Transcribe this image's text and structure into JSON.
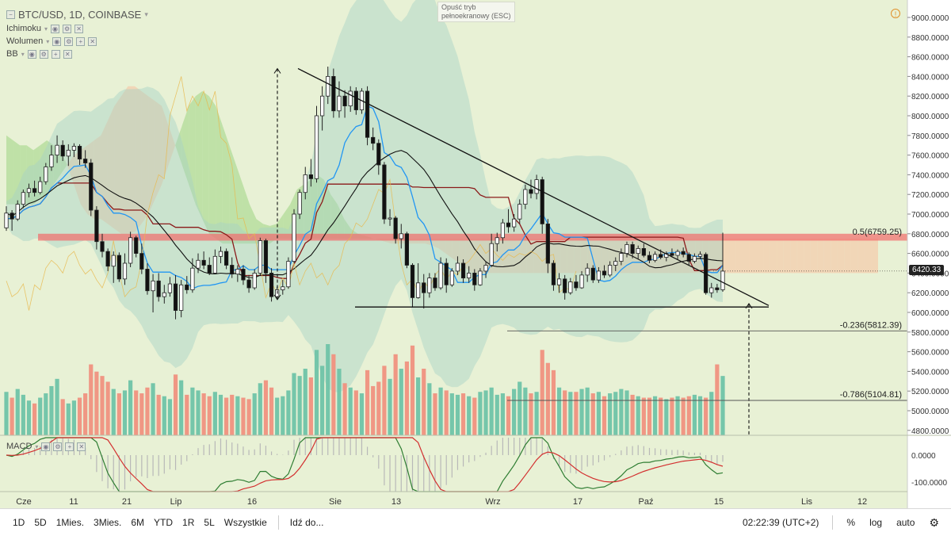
{
  "header": {
    "symbol_title": "BTC/USD, 1D, COINBASE",
    "fullscreen_tooltip": "Opuść tryb\npełnoekranowy (ESC)",
    "indicators": [
      {
        "name": "Ichimoku",
        "btn_symbols": [
          "◉",
          "⚙",
          "✕"
        ]
      },
      {
        "name": "Wolumen",
        "btn_symbols": [
          "◉",
          "⚙",
          "+",
          "✕"
        ]
      },
      {
        "name": "BB",
        "btn_symbols": [
          "◉",
          "⚙",
          "+",
          "✕"
        ]
      }
    ],
    "macd_label": "MACD"
  },
  "colors": {
    "background": "#e8f1d5",
    "bull": "#2a2a2a",
    "up_volume": "#6fc3a8",
    "down_volume": "#f0917f",
    "tenkan": "#2196f3",
    "kijun": "#8b1a1a",
    "bb_mid": "#111111",
    "bb_band": "#a6d2c5",
    "kumo_green": "#a9d88f",
    "kumo_red": "#f6c7a7",
    "resistance_zone": "#f26b6b",
    "macd_line": "#2e7d32",
    "signal_line": "#d32f2f"
  },
  "price_axis": {
    "ticks": [
      4800,
      5000,
      5200,
      5400,
      5600,
      5800,
      6000,
      6200,
      6400,
      6600,
      6800,
      7000,
      7200,
      7400,
      7600,
      7800,
      8000,
      8200,
      8400,
      8600,
      8800,
      9000
    ],
    "current_price": "6420.33",
    "macd_ticks": [
      "0.0000",
      "-100.0000"
    ]
  },
  "time_axis": {
    "labels": [
      "Cze",
      "11",
      "21",
      "Lip",
      "16",
      "Sie",
      "13",
      "Wrz",
      "17",
      "Paź",
      "15",
      "Lis",
      "12"
    ]
  },
  "bottom_bar": {
    "timeframes": [
      "1D",
      "5D",
      "1Mies.",
      "3Mies.",
      "6M",
      "YTD",
      "1R",
      "5L",
      "Wszystkie"
    ],
    "goto": "Idź do...",
    "clock": "02:22:39 (UTC+2)",
    "percent": "%",
    "log": "log",
    "auto": "auto"
  },
  "chart_data": {
    "type": "candlestick",
    "title": "BTC/USD, 1D, COINBASE",
    "ylim": [
      4750,
      9100
    ],
    "annotations": {
      "fib_05": {
        "label": "0.5(6759.25)",
        "value": 6759.25
      },
      "fib_0236": {
        "label": "-0.236(5812.39)",
        "value": 5812.39
      },
      "fib_0786": {
        "label": "-0.786(5104.81)",
        "value": 5104.81
      },
      "resistance_zone": [
        6730,
        6800
      ],
      "support_line": 6055,
      "descending_trendline": [
        [
          0,
          8480
        ],
        [
          1,
          6070
        ]
      ],
      "measured_move_top": 8480,
      "measured_move_bottom": 6130
    },
    "anchors": {
      "candles": [
        [
          6860,
          7080,
          6830,
          7010
        ],
        [
          7010,
          7040,
          6830,
          6950
        ],
        [
          6950,
          7140,
          6930,
          7100
        ],
        [
          7100,
          7250,
          7060,
          7220
        ],
        [
          7220,
          7310,
          7170,
          7260
        ],
        [
          7260,
          7340,
          7180,
          7220
        ],
        [
          7220,
          7380,
          7200,
          7330
        ],
        [
          7330,
          7520,
          7300,
          7480
        ],
        [
          7480,
          7700,
          7440,
          7600
        ],
        [
          7600,
          7800,
          7520,
          7700
        ],
        [
          7700,
          7750,
          7540,
          7590
        ],
        [
          7590,
          7710,
          7490,
          7650
        ],
        [
          7650,
          7720,
          7580,
          7690
        ],
        [
          7690,
          7710,
          7500,
          7560
        ],
        [
          7560,
          7650,
          7470,
          7520
        ],
        [
          7520,
          7560,
          6980,
          7040
        ],
        [
          7040,
          7080,
          6640,
          6720
        ],
        [
          6720,
          6800,
          6560,
          6620
        ],
        [
          6620,
          6650,
          6420,
          6470
        ],
        [
          6470,
          6620,
          6300,
          6580
        ],
        [
          6580,
          6610,
          6310,
          6340
        ],
        [
          6340,
          6600,
          6280,
          6500
        ],
        [
          6500,
          6820,
          6460,
          6760
        ],
        [
          6760,
          6780,
          6560,
          6600
        ],
        [
          6600,
          6700,
          6390,
          6440
        ],
        [
          6440,
          6500,
          6180,
          6220
        ],
        [
          6220,
          6390,
          6000,
          6320
        ],
        [
          6320,
          6400,
          6110,
          6160
        ],
        [
          6160,
          6280,
          6090,
          6200
        ],
        [
          6200,
          6360,
          6160,
          6290
        ],
        [
          6290,
          6380,
          5930,
          6020
        ],
        [
          6020,
          6330,
          5950,
          6280
        ],
        [
          6280,
          6370,
          6190,
          6230
        ],
        [
          6230,
          6550,
          6200,
          6450
        ],
        [
          6450,
          6600,
          6400,
          6530
        ],
        [
          6530,
          6620,
          6440,
          6480
        ],
        [
          6480,
          6560,
          6380,
          6400
        ],
        [
          6400,
          6640,
          6390,
          6570
        ],
        [
          6570,
          6670,
          6500,
          6620
        ],
        [
          6620,
          6650,
          6440,
          6480
        ],
        [
          6480,
          6560,
          6350,
          6390
        ],
        [
          6390,
          6480,
          6310,
          6440
        ],
        [
          6440,
          6480,
          6280,
          6330
        ],
        [
          6330,
          6380,
          6200,
          6250
        ],
        [
          6250,
          6440,
          6230,
          6400
        ],
        [
          6400,
          6760,
          6380,
          6730
        ],
        [
          6730,
          6750,
          6300,
          6400
        ],
        [
          6400,
          6450,
          6110,
          6160
        ],
        [
          6160,
          6260,
          6130,
          6230
        ],
        [
          6230,
          6330,
          6180,
          6260
        ],
        [
          6260,
          6560,
          6240,
          6520
        ],
        [
          6520,
          7050,
          6500,
          7000
        ],
        [
          7000,
          7250,
          6950,
          7220
        ],
        [
          7220,
          7480,
          7150,
          7400
        ],
        [
          7400,
          7560,
          7280,
          7360
        ],
        [
          7360,
          8100,
          7320,
          8000
        ],
        [
          8000,
          8300,
          7850,
          8200
        ],
        [
          8200,
          8500,
          8120,
          8400
        ],
        [
          8400,
          8480,
          7980,
          8050
        ],
        [
          8050,
          8350,
          7980,
          8200
        ],
        [
          8200,
          8260,
          7980,
          8100
        ],
        [
          8100,
          8300,
          8040,
          8250
        ],
        [
          8250,
          8290,
          8010,
          8060
        ],
        [
          8060,
          8280,
          8020,
          8250
        ],
        [
          8250,
          8300,
          7700,
          7780
        ],
        [
          7780,
          7880,
          7650,
          7720
        ],
        [
          7720,
          7760,
          7400,
          7500
        ],
        [
          7500,
          7530,
          6900,
          6950
        ],
        [
          6950,
          7050,
          6880,
          6960
        ],
        [
          6960,
          6980,
          6700,
          6750
        ],
        [
          6750,
          6900,
          6650,
          6800
        ],
        [
          6800,
          6820,
          6450,
          6480
        ],
        [
          6480,
          6500,
          6050,
          6150
        ],
        [
          6150,
          6500,
          6140,
          6300
        ],
        [
          6300,
          6390,
          6040,
          6200
        ],
        [
          6200,
          6400,
          6150,
          6350
        ],
        [
          6350,
          6400,
          6220,
          6250
        ],
        [
          6250,
          6560,
          6230,
          6500
        ],
        [
          6500,
          6550,
          6200,
          6280
        ],
        [
          6280,
          6450,
          6260,
          6420
        ],
        [
          6420,
          6570,
          6380,
          6500
        ],
        [
          6500,
          6540,
          6300,
          6350
        ],
        [
          6350,
          6470,
          6300,
          6400
        ],
        [
          6400,
          6440,
          6220,
          6280
        ],
        [
          6280,
          6450,
          6270,
          6420
        ],
        [
          6420,
          6520,
          6350,
          6480
        ],
        [
          6480,
          6800,
          6460,
          6700
        ],
        [
          6700,
          6810,
          6620,
          6760
        ],
        [
          6760,
          6950,
          6700,
          6910
        ],
        [
          6910,
          7050,
          6810,
          6870
        ],
        [
          6870,
          7000,
          6820,
          6950
        ],
        [
          6950,
          7150,
          6900,
          7100
        ],
        [
          7100,
          7300,
          7050,
          7250
        ],
        [
          7250,
          7350,
          7160,
          7210
        ],
        [
          7210,
          7400,
          7150,
          7350
        ],
        [
          7350,
          7380,
          6800,
          6900
        ],
        [
          6900,
          6950,
          6400,
          6500
        ],
        [
          6500,
          6530,
          6220,
          6280
        ],
        [
          6280,
          6400,
          6200,
          6340
        ],
        [
          6340,
          6380,
          6130,
          6200
        ],
        [
          6200,
          6350,
          6180,
          6310
        ],
        [
          6310,
          6380,
          6220,
          6250
        ],
        [
          6250,
          6420,
          6240,
          6380
        ],
        [
          6380,
          6500,
          6310,
          6450
        ],
        [
          6450,
          6480,
          6300,
          6330
        ],
        [
          6330,
          6460,
          6300,
          6420
        ],
        [
          6420,
          6480,
          6350,
          6380
        ],
        [
          6380,
          6520,
          6360,
          6480
        ],
        [
          6480,
          6560,
          6420,
          6520
        ],
        [
          6520,
          6650,
          6480,
          6600
        ],
        [
          6600,
          6720,
          6560,
          6690
        ],
        [
          6690,
          6720,
          6550,
          6600
        ],
        [
          6600,
          6680,
          6540,
          6650
        ],
        [
          6650,
          6700,
          6560,
          6580
        ],
        [
          6580,
          6620,
          6500,
          6530
        ],
        [
          6530,
          6620,
          6510,
          6590
        ],
        [
          6590,
          6640,
          6540,
          6560
        ],
        [
          6560,
          6620,
          6520,
          6600
        ],
        [
          6600,
          6650,
          6560,
          6580
        ],
        [
          6580,
          6640,
          6540,
          6620
        ],
        [
          6620,
          6660,
          6560,
          6590
        ],
        [
          6590,
          6610,
          6480,
          6520
        ],
        [
          6520,
          6600,
          6500,
          6570
        ],
        [
          6570,
          6620,
          6540,
          6590
        ],
        [
          6590,
          6610,
          6180,
          6200
        ],
        [
          6200,
          6300,
          6150,
          6250
        ],
        [
          6250,
          6290,
          6200,
          6230
        ],
        [
          6230,
          6810,
          6210,
          6420
        ]
      ],
      "volume": [
        3000,
        2600,
        3200,
        2800,
        2400,
        2200,
        2600,
        2900,
        3400,
        3900,
        2500,
        2200,
        2400,
        2600,
        2900,
        4900,
        4400,
        4100,
        3700,
        3200,
        2900,
        3100,
        3800,
        3100,
        2900,
        3300,
        3600,
        2800,
        2700,
        2500,
        4200,
        3800,
        2800,
        3300,
        3100,
        2900,
        2700,
        3000,
        2800,
        2600,
        2800,
        2700,
        2600,
        2500,
        2900,
        3600,
        3800,
        3300,
        2600,
        2700,
        3100,
        4300,
        4100,
        4600,
        4000,
        5900,
        4800,
        6300,
        5600,
        4600,
        3600,
        3300,
        3100,
        2900,
        4500,
        3400,
        3700,
        4800,
        3900,
        5600,
        4600,
        5100,
        6200,
        4000,
        4600,
        3600,
        2900,
        3300,
        3100,
        2900,
        2800,
        2900,
        2700,
        2600,
        3000,
        3100,
        3300,
        2800,
        2900,
        2700,
        3200,
        3700,
        3300,
        2900,
        3000,
        5900,
        5000,
        4500,
        3300,
        3100,
        3000,
        3000,
        3200,
        3300,
        2900,
        3000,
        2700,
        2900,
        3000,
        3200,
        3100,
        2800,
        2700,
        2600,
        2600,
        2700,
        2600,
        2500,
        2600,
        2700,
        2600,
        2700,
        2800,
        2700,
        2600,
        3000,
        4900,
        4100,
        3200,
        5000
      ],
      "kumo_a": [
        7800,
        7750,
        7700,
        7700,
        7650,
        7700,
        7750,
        7700,
        7650,
        7500,
        7300,
        7100,
        7000,
        6950,
        6950,
        6900,
        6850,
        6800,
        6800,
        6820,
        6900,
        7000,
        7150,
        7300,
        7500,
        7700,
        7900,
        8100,
        8200,
        8250,
        8200,
        8100,
        7900,
        7700,
        7500,
        7300,
        7100,
        6950,
        6900,
        6880,
        6900,
        7000,
        7100,
        7250,
        7300,
        7350,
        7400,
        7350,
        7200,
        7100,
        6950,
        6850,
        6800,
        6780,
        6760,
        6740,
        6720,
        6700,
        6700,
        6700,
        6700,
        6700,
        6700,
        6680,
        6650,
        6600,
        6550,
        6500,
        6450,
        6400,
        6400,
        6400,
        6400,
        6400,
        6400,
        6400,
        6400,
        6400,
        6400,
        6400,
        6400,
        6400,
        6400,
        6400,
        6400,
        6400,
        6400,
        6400,
        6400,
        6400,
        6400,
        6400,
        6400,
        6400,
        6400,
        6400,
        6400,
        6400,
        6400,
        6400,
        6400,
        6400,
        6400,
        6400,
        6400,
        6400,
        6400,
        6400,
        6400,
        6400,
        6400,
        6400,
        6400,
        6400,
        6400,
        6400,
        6400,
        6400,
        6400,
        6400,
        6400,
        6400,
        6400,
        6400,
        6400,
        6400,
        6400,
        6400,
        6400,
        6400
      ],
      "kumo_b": [
        7100,
        7100,
        7100,
        7100,
        7100,
        7150,
        7200,
        7300,
        7400,
        7500,
        7600,
        7650,
        7700,
        7750,
        7800,
        7950,
        8100,
        8200,
        8300,
        8300,
        8250,
        8200,
        8150,
        8100,
        7900,
        7700,
        7500,
        7300,
        7100,
        6950,
        6800,
        6750,
        6700,
        6700,
        6700,
        6700,
        6700,
        6700,
        6700,
        6700,
        6750,
        6750,
        6750,
        6750,
        6750,
        6750,
        6750,
        6750,
        6750,
        6750,
        6750,
        6750,
        6750,
        6750,
        6750,
        6750,
        6750,
        6750,
        6750,
        6750,
        6750,
        6750,
        6750,
        6750,
        6750,
        6750,
        6750,
        6750,
        6750,
        6750,
        6750,
        6750,
        6750,
        6750,
        6750,
        6750,
        6750,
        6750,
        6750,
        6750,
        6750,
        6750,
        6750,
        6750,
        6750,
        6750,
        6750,
        6750,
        6750,
        6750,
        6750,
        6750,
        6750,
        6750,
        6750,
        6750,
        6750,
        6750,
        6750,
        6750,
        6750,
        6750,
        6750,
        6750,
        6750,
        6750,
        6750,
        6750,
        6750,
        6750,
        6750,
        6750,
        6750,
        6750,
        6750,
        6750,
        6750,
        6750,
        6750,
        6750,
        6750,
        6750,
        6750,
        6750,
        6750,
        6750,
        6750,
        6750,
        6750,
        6750
      ]
    }
  }
}
